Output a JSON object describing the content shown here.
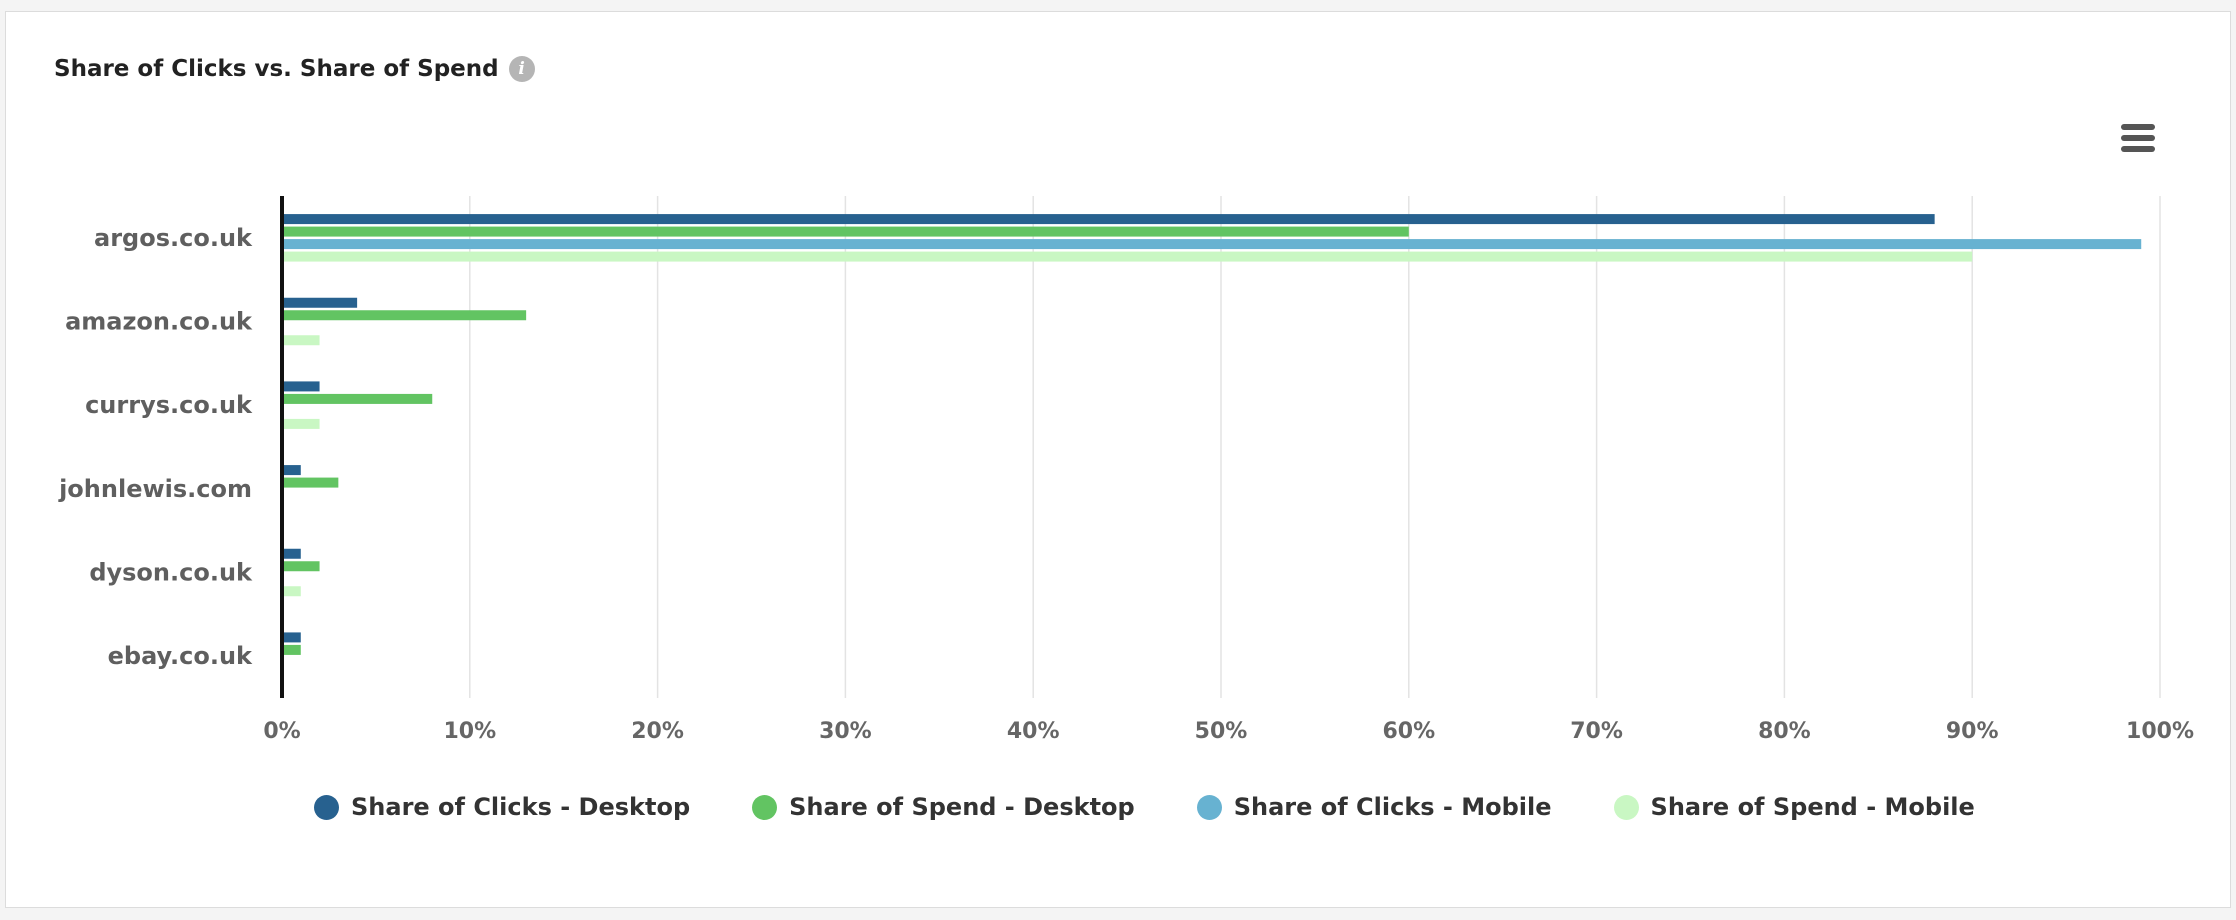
{
  "chart_data": {
    "type": "bar",
    "orientation": "horizontal",
    "title": "Share of Clicks vs. Share of Spend",
    "categories": [
      "argos.co.uk",
      "amazon.co.uk",
      "currys.co.uk",
      "johnlewis.com",
      "dyson.co.uk",
      "ebay.co.uk"
    ],
    "series": [
      {
        "name": "Share of Clicks - Desktop",
        "color": "#27618f",
        "values": [
          88,
          4,
          2,
          1,
          1,
          1
        ]
      },
      {
        "name": "Share of Spend - Desktop",
        "color": "#62c462",
        "values": [
          60,
          13,
          8,
          3,
          2,
          1
        ]
      },
      {
        "name": "Share of Clicks - Mobile",
        "color": "#67b2d1",
        "values": [
          99,
          0,
          0,
          0,
          0,
          0
        ]
      },
      {
        "name": "Share of Spend - Mobile",
        "color": "#c9f7c3",
        "values": [
          90,
          2,
          2,
          0,
          1,
          0
        ]
      }
    ],
    "xlim": [
      0,
      100
    ],
    "xticks": [
      "0%",
      "10%",
      "20%",
      "30%",
      "40%",
      "50%",
      "60%",
      "70%",
      "80%",
      "90%",
      "100%"
    ],
    "xlabel": "",
    "ylabel": "",
    "grid": true,
    "legend_position": "bottom"
  },
  "icons": {
    "info": "i",
    "menu": "hamburger-menu-icon"
  }
}
